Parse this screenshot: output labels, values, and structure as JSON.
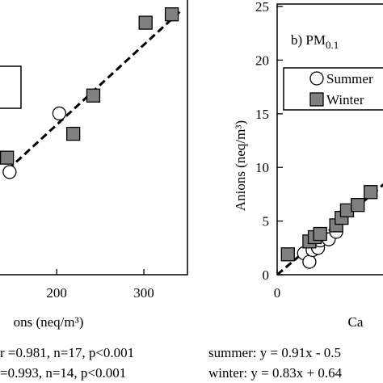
{
  "chart_data": [
    {
      "type": "scatter",
      "x_label": "ons (neq/m³)",
      "stats": [
        "r =0.981, n=17, p<0.001",
        "=0.993, n=14, p<0.001"
      ],
      "xlim": [
        135,
        350
      ],
      "xticks": [
        200,
        300
      ],
      "ylim": [
        120,
        350
      ],
      "series": [
        {
          "marker": "square",
          "color": "#808080",
          "x": [
            302,
            332,
            242,
            219,
            143
          ],
          "y": [
            331,
            338,
            270,
            238,
            218
          ]
        },
        {
          "marker": "circle",
          "color": "#ffffff",
          "x": [
            203,
            146
          ],
          "y": [
            255,
            206
          ]
        }
      ],
      "fit": {
        "x": [
          144,
          341
        ],
        "y": [
          208,
          340
        ]
      }
    },
    {
      "type": "scatter",
      "title": "b) PM",
      "title_sub": "0.1",
      "x_label": "Ca",
      "y_label": "Anions (neq/m³)",
      "stats": [
        "summer: y = 0.91x - 0.5",
        "winter: y = 0.83x + 0.64"
      ],
      "xlim": [
        0,
        10
      ],
      "xticks": [
        0
      ],
      "ylim": [
        0,
        25
      ],
      "yticks": [
        0,
        5,
        10,
        15,
        20,
        25
      ],
      "series": [
        {
          "name": "Summer",
          "marker": "circle",
          "color": "#ffffff",
          "x": [
            2.5,
            3,
            3.3,
            3.8,
            4,
            4.8,
            5.5
          ],
          "y": [
            2,
            1.2,
            2.3,
            2.5,
            3.2,
            3.3,
            4
          ]
        },
        {
          "name": "Winter",
          "marker": "square",
          "color": "#808080",
          "x": [
            1,
            3,
            3.5,
            4,
            5.5,
            6,
            6.5,
            7.5,
            8.7
          ],
          "y": [
            1.9,
            3.1,
            3.5,
            3.8,
            4.6,
            5.3,
            6,
            6.5,
            7.7
          ]
        }
      ],
      "fit": {
        "x": [
          0,
          10
        ],
        "y": [
          0,
          8.5
        ]
      }
    }
  ]
}
